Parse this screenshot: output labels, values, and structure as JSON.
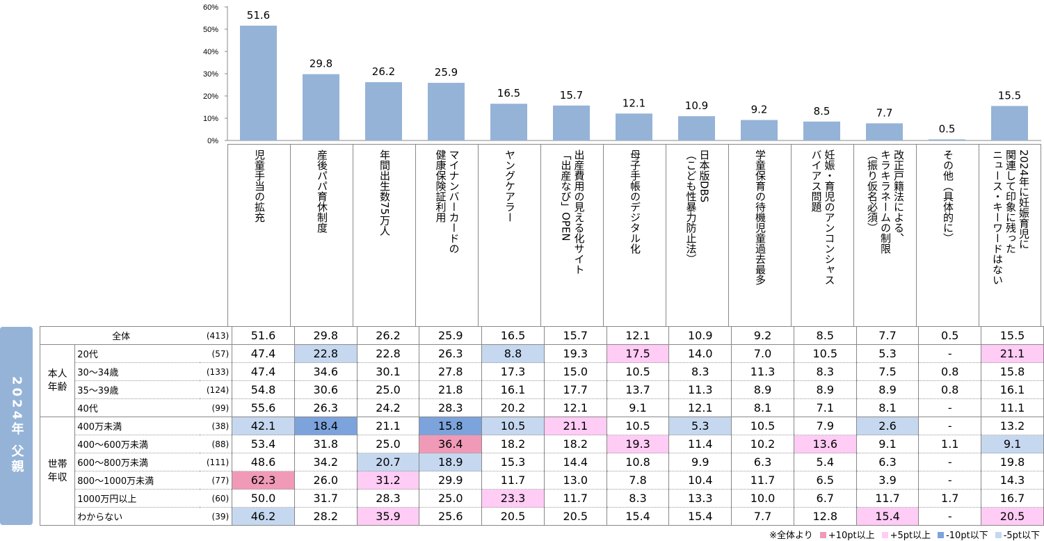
{
  "side_label": "2024年 父親",
  "legend": {
    "note": "※全体より",
    "items": [
      {
        "label": "+10pt以上",
        "color": "#f09ab8"
      },
      {
        "label": "+5pt以上",
        "color": "#ffccf5"
      },
      {
        "label": "-10pt以下",
        "color": "#7ca3dc"
      },
      {
        "label": "-5pt以下",
        "color": "#c5d8ef"
      }
    ]
  },
  "colors": {
    "bar": "#95b3d7",
    "p10": "#f09ab8",
    "p5": "#ffccf5",
    "m10": "#7ca3dc",
    "m5": "#c5d8ef"
  },
  "chart_data": {
    "type": "bar",
    "title": "",
    "xlabel": "",
    "ylabel": "",
    "ylim": [
      0,
      60
    ],
    "yticks": [
      "0%",
      "10%",
      "20%",
      "30%",
      "40%",
      "50%",
      "60%"
    ],
    "categories": [
      "児童手当の拡充",
      "産後パパ育休制度",
      "年間出生数75万人",
      "マイナンバーカードの\n健康保険証利用",
      "ヤングケアラー",
      "出産費用の見える化サイト\n「出産なび」OPEN",
      "母子手帳のデジタル化",
      "日本版DBS\n（こども性暴力防止法）",
      "学童保育の待機児童過去最多",
      "妊娠・育児のアンコンシャス\nバイアス問題",
      "改正戸籍法による、\nキラキラネームの制限\n（振り仮名必須）",
      "その他（具体的に）",
      "2024年に妊娠育児に\n関連して印象に残った\nニュース・キーワードはない"
    ],
    "values": [
      51.6,
      29.8,
      26.2,
      25.9,
      16.5,
      15.7,
      12.1,
      10.9,
      9.2,
      8.5,
      7.7,
      0.5,
      15.5
    ],
    "labels": [
      "51.6",
      "29.8",
      "26.2",
      "25.9",
      "16.5",
      "15.7",
      "12.1",
      "10.9",
      "9.2",
      "8.5",
      "7.7",
      "0.5",
      "15.5"
    ]
  },
  "table": {
    "rows": [
      {
        "group": "",
        "label": "全体",
        "n": "(413)",
        "values": [
          "51.6",
          "29.8",
          "26.2",
          "25.9",
          "16.5",
          "15.7",
          "12.1",
          "10.9",
          "9.2",
          "8.5",
          "7.7",
          "0.5",
          "15.5"
        ],
        "hl": "-------------"
      },
      {
        "group": "本人\n年齢",
        "label": "20代",
        "n": "(57)",
        "values": [
          "47.4",
          "22.8",
          "22.8",
          "26.3",
          "8.8",
          "19.3",
          "17.5",
          "14.0",
          "7.0",
          "10.5",
          "5.3",
          "-",
          "21.1"
        ],
        "hl": "-m--m-p-----p"
      },
      {
        "group": "",
        "label": "30〜34歳",
        "n": "(133)",
        "values": [
          "47.4",
          "34.6",
          "30.1",
          "27.8",
          "17.3",
          "15.0",
          "10.5",
          "8.3",
          "11.3",
          "8.3",
          "7.5",
          "0.8",
          "15.8"
        ],
        "hl": "-------------"
      },
      {
        "group": "",
        "label": "35〜39歳",
        "n": "(124)",
        "values": [
          "54.8",
          "30.6",
          "25.0",
          "21.8",
          "16.1",
          "17.7",
          "13.7",
          "11.3",
          "8.9",
          "8.9",
          "8.9",
          "0.8",
          "16.1"
        ],
        "hl": "-------------"
      },
      {
        "group": "",
        "label": "40代",
        "n": "(99)",
        "values": [
          "55.6",
          "26.3",
          "24.2",
          "28.3",
          "20.2",
          "12.1",
          "9.1",
          "12.1",
          "8.1",
          "7.1",
          "8.1",
          "-",
          "11.1"
        ],
        "hl": "-------------"
      },
      {
        "group": "世帯\n年収",
        "label": "400万未満",
        "n": "(38)",
        "values": [
          "42.1",
          "18.4",
          "21.1",
          "15.8",
          "10.5",
          "21.1",
          "10.5",
          "5.3",
          "10.5",
          "7.9",
          "2.6",
          "-",
          "13.2"
        ],
        "hl": "mM-Mmp-m--m--"
      },
      {
        "group": "",
        "label": "400〜600万未満",
        "n": "(88)",
        "values": [
          "53.4",
          "31.8",
          "25.0",
          "36.4",
          "18.2",
          "18.2",
          "19.3",
          "11.4",
          "10.2",
          "13.6",
          "9.1",
          "1.1",
          "9.1"
        ],
        "hl": "---P--p--p--m"
      },
      {
        "group": "",
        "label": "600〜800万未満",
        "n": "(111)",
        "values": [
          "48.6",
          "34.2",
          "20.7",
          "18.9",
          "15.3",
          "14.4",
          "10.8",
          "9.9",
          "6.3",
          "5.4",
          "6.3",
          "-",
          "19.8"
        ],
        "hl": "--mm---------"
      },
      {
        "group": "",
        "label": "800〜1000万未満",
        "n": "(77)",
        "values": [
          "62.3",
          "26.0",
          "31.2",
          "29.9",
          "11.7",
          "13.0",
          "7.8",
          "10.4",
          "11.7",
          "6.5",
          "3.9",
          "-",
          "14.3"
        ],
        "hl": "P-p----------"
      },
      {
        "group": "",
        "label": "1000万円以上",
        "n": "(60)",
        "values": [
          "50.0",
          "31.7",
          "28.3",
          "25.0",
          "23.3",
          "11.7",
          "8.3",
          "13.3",
          "10.0",
          "6.7",
          "11.7",
          "1.7",
          "16.7"
        ],
        "hl": "----p--------"
      },
      {
        "group": "",
        "label": "わからない",
        "n": "(39)",
        "values": [
          "46.2",
          "28.2",
          "35.9",
          "25.6",
          "20.5",
          "20.5",
          "15.4",
          "15.4",
          "7.7",
          "12.8",
          "15.4",
          "-",
          "20.5"
        ],
        "hl": "m-p-------p-p"
      }
    ]
  }
}
